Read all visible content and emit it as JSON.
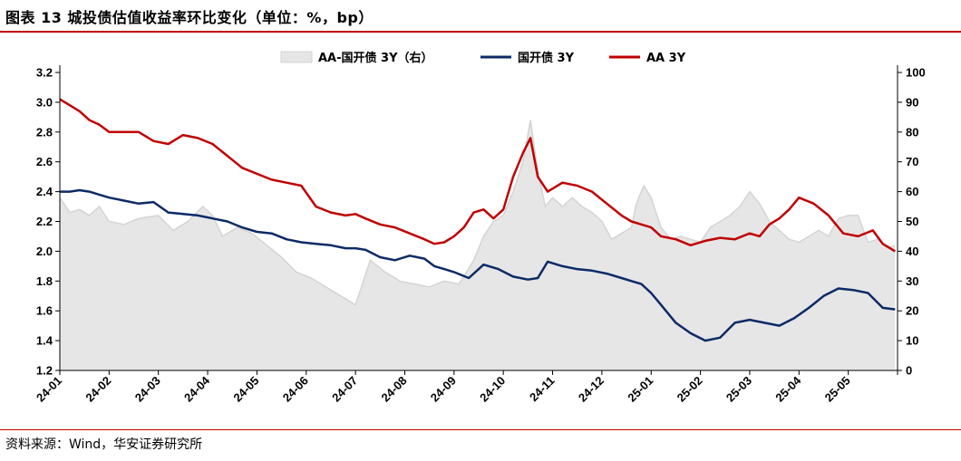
{
  "header": {
    "title": "图表 13 城投债估值收益率环比变化（单位：%，bp）"
  },
  "footer": {
    "source": "资料来源：Wind，华安证券研究所"
  },
  "colors": {
    "title_rule": "#c00000",
    "spread_fill": "#e6e6e6",
    "spread_line": "#d4d4d4",
    "gov_line": "#0c2a66",
    "aa_line": "#c00000"
  },
  "chart_data": {
    "type": "line",
    "legend_placement": "top-center",
    "grid": false,
    "categories": [
      "24-01",
      "24-02",
      "24-03",
      "24-04",
      "24-05",
      "24-06",
      "24-07",
      "24-08",
      "24-09",
      "24-10",
      "24-11",
      "24-12",
      "25-01",
      "25-02",
      "25-03",
      "25-04",
      "25-05"
    ],
    "x_range_months": [
      0,
      17
    ],
    "y_left": {
      "lim": [
        1.2,
        3.2
      ],
      "ticks": [
        "1.2",
        "1.4",
        "1.6",
        "1.8",
        "2.0",
        "2.2",
        "2.4",
        "2.6",
        "2.8",
        "3.0",
        "3.2"
      ]
    },
    "y_right": {
      "lim": [
        0,
        100
      ],
      "ticks": [
        "0",
        "10",
        "20",
        "30",
        "40",
        "50",
        "60",
        "70",
        "80",
        "90",
        "100"
      ]
    },
    "series": [
      {
        "name": "AA-国开债 3Y（右）",
        "axis": "right",
        "style": "area",
        "x": [
          0,
          0.2,
          0.4,
          0.6,
          0.8,
          1.0,
          1.3,
          1.6,
          2.0,
          2.3,
          2.6,
          2.9,
          3.1,
          3.3,
          3.6,
          3.9,
          4.2,
          4.5,
          4.8,
          5.1,
          5.4,
          5.7,
          6.0,
          6.3,
          6.6,
          6.9,
          7.2,
          7.5,
          7.8,
          8.1,
          8.4,
          8.6,
          8.8,
          9.0,
          9.2,
          9.4,
          9.55,
          9.7,
          9.85,
          10.0,
          10.2,
          10.4,
          10.6,
          10.8,
          11.0,
          11.2,
          11.4,
          11.6,
          11.7,
          11.85,
          12.0,
          12.2,
          12.4,
          12.6,
          12.8,
          13.0,
          13.2,
          13.4,
          13.6,
          13.8,
          14.0,
          14.2,
          14.4,
          14.6,
          14.8,
          15.0,
          15.2,
          15.4,
          15.6,
          15.8,
          16.0,
          16.2,
          16.4,
          16.6,
          16.8,
          16.95
        ],
        "values": [
          58,
          53,
          54,
          52,
          55,
          50,
          49,
          51,
          52,
          47,
          50,
          55,
          52,
          45,
          48,
          46,
          42,
          38,
          33,
          31,
          28,
          25,
          22,
          37,
          33,
          30,
          29,
          28,
          30,
          29,
          37,
          45,
          50,
          52,
          60,
          70,
          84,
          67,
          55,
          58,
          55,
          58,
          55,
          53,
          50,
          44,
          46,
          48,
          56,
          62,
          58,
          48,
          44,
          45,
          44,
          43,
          48,
          50,
          52,
          55,
          60,
          56,
          50,
          47,
          44,
          43,
          45,
          47,
          45,
          51,
          52,
          52,
          43,
          44,
          41,
          42
        ]
      },
      {
        "name": "国开债 3Y",
        "axis": "left",
        "style": "line",
        "x": [
          0,
          0.2,
          0.4,
          0.6,
          0.8,
          1.0,
          1.3,
          1.6,
          1.9,
          2.2,
          2.5,
          2.8,
          3.1,
          3.4,
          3.7,
          4.0,
          4.3,
          4.6,
          4.9,
          5.2,
          5.5,
          5.8,
          6.0,
          6.2,
          6.5,
          6.8,
          7.1,
          7.4,
          7.6,
          7.8,
          8.0,
          8.3,
          8.6,
          8.9,
          9.2,
          9.5,
          9.7,
          9.9,
          10.2,
          10.5,
          10.8,
          11.1,
          11.4,
          11.6,
          11.8,
          12.0,
          12.2,
          12.5,
          12.8,
          13.1,
          13.4,
          13.7,
          14.0,
          14.3,
          14.6,
          14.9,
          15.2,
          15.5,
          15.8,
          16.1,
          16.4,
          16.7,
          16.95
        ],
        "values": [
          2.4,
          2.4,
          2.41,
          2.4,
          2.38,
          2.36,
          2.34,
          2.32,
          2.33,
          2.26,
          2.25,
          2.24,
          2.22,
          2.2,
          2.16,
          2.13,
          2.12,
          2.08,
          2.06,
          2.05,
          2.04,
          2.02,
          2.02,
          2.01,
          1.96,
          1.94,
          1.97,
          1.95,
          1.9,
          1.88,
          1.86,
          1.82,
          1.91,
          1.88,
          1.83,
          1.81,
          1.82,
          1.93,
          1.9,
          1.88,
          1.87,
          1.85,
          1.82,
          1.8,
          1.78,
          1.72,
          1.64,
          1.52,
          1.45,
          1.4,
          1.42,
          1.52,
          1.54,
          1.52,
          1.5,
          1.55,
          1.62,
          1.7,
          1.75,
          1.74,
          1.72,
          1.62,
          1.61
        ]
      },
      {
        "name": "AA 3Y",
        "axis": "left",
        "style": "line",
        "x": [
          0,
          0.2,
          0.4,
          0.6,
          0.8,
          1.0,
          1.3,
          1.6,
          1.9,
          2.2,
          2.5,
          2.8,
          3.1,
          3.4,
          3.7,
          4.0,
          4.3,
          4.6,
          4.9,
          5.2,
          5.5,
          5.8,
          6.0,
          6.2,
          6.5,
          6.8,
          7.1,
          7.4,
          7.6,
          7.8,
          8.0,
          8.2,
          8.4,
          8.6,
          8.8,
          9.0,
          9.2,
          9.4,
          9.55,
          9.7,
          9.9,
          10.2,
          10.5,
          10.8,
          11.1,
          11.4,
          11.6,
          11.8,
          12.0,
          12.2,
          12.5,
          12.8,
          13.1,
          13.4,
          13.7,
          14.0,
          14.2,
          14.4,
          14.6,
          14.8,
          15.0,
          15.3,
          15.6,
          15.9,
          16.2,
          16.5,
          16.7,
          16.95
        ],
        "values": [
          3.02,
          2.98,
          2.94,
          2.88,
          2.85,
          2.8,
          2.8,
          2.8,
          2.74,
          2.72,
          2.78,
          2.76,
          2.72,
          2.64,
          2.56,
          2.52,
          2.48,
          2.46,
          2.44,
          2.3,
          2.26,
          2.24,
          2.25,
          2.22,
          2.18,
          2.16,
          2.12,
          2.08,
          2.05,
          2.06,
          2.1,
          2.16,
          2.26,
          2.28,
          2.22,
          2.28,
          2.5,
          2.66,
          2.76,
          2.5,
          2.4,
          2.46,
          2.44,
          2.4,
          2.32,
          2.24,
          2.2,
          2.18,
          2.16,
          2.1,
          2.08,
          2.04,
          2.07,
          2.09,
          2.08,
          2.12,
          2.1,
          2.18,
          2.22,
          2.28,
          2.36,
          2.32,
          2.24,
          2.12,
          2.1,
          2.14,
          2.05,
          2.0
        ]
      }
    ]
  }
}
